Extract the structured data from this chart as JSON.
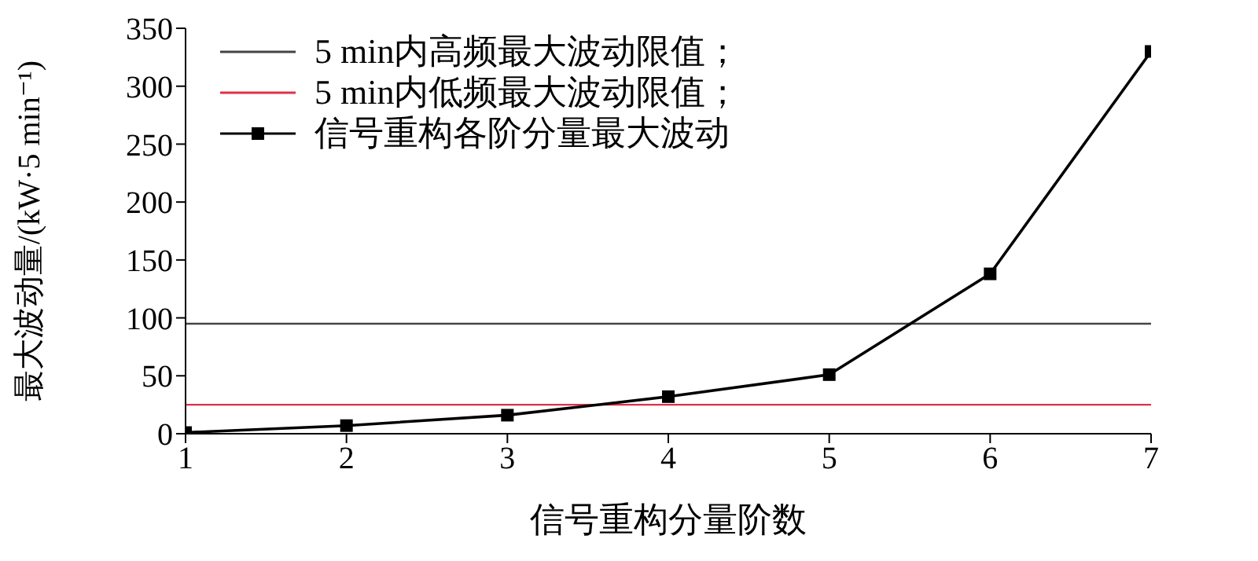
{
  "chart_data": {
    "type": "line",
    "xlabel": "信号重构分量阶数",
    "ylabel": "最大波动量/(kW·5 min⁻¹)",
    "x": [
      1,
      2,
      3,
      4,
      5,
      6,
      7
    ],
    "series": [
      {
        "name": "信号重构各阶分量最大波动",
        "color": "#000000",
        "values": [
          1,
          7,
          16,
          32,
          51,
          138,
          330
        ]
      }
    ],
    "ref_lines": [
      {
        "axis": "y",
        "value": 95,
        "label": "5 min内高频最大波动限值；",
        "color": "#444444"
      },
      {
        "axis": "y",
        "value": 25,
        "label": "5 min内低频最大波动限值；",
        "color": "#e0304a"
      }
    ],
    "xlim": [
      1,
      7
    ],
    "xticks": [
      1,
      2,
      3,
      4,
      5,
      6,
      7
    ],
    "ylim": [
      0,
      350
    ],
    "yticks": [
      0,
      50,
      100,
      150,
      200,
      250,
      300,
      350
    ],
    "marker": "square",
    "line_style": "solid",
    "grid": false,
    "legend": "top left"
  }
}
